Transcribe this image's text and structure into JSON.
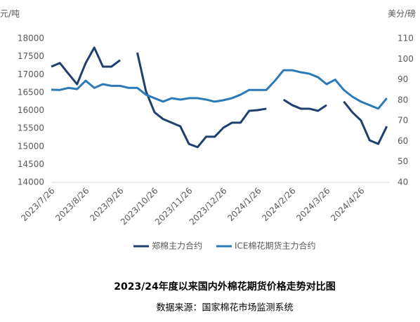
{
  "chart_data": {
    "type": "line",
    "title": "2023/24年度以来国内外棉花期货价格走势对比图",
    "subtitle": "数据来源：国家棉花市场监测系统",
    "y_label": "元/吨",
    "y2_label": "美分/磅",
    "categories": [
      "2023/7/26",
      null,
      null,
      null,
      "2023/8/26",
      null,
      null,
      null,
      "2023/9/26",
      null,
      null,
      null,
      "2023/10/26",
      null,
      null,
      null,
      "2023/11/26",
      null,
      null,
      null,
      "2023/12/26",
      null,
      null,
      null,
      "2024/1/26",
      null,
      null,
      null,
      "2024/2/26",
      null,
      null,
      null,
      "2024/3/26",
      null,
      null,
      null,
      "2024/4/26",
      null,
      null,
      null
    ],
    "series": [
      {
        "name": "郑棉主力合约",
        "color": "#1f3f6e",
        "values": [
          17220,
          17320,
          17020,
          16730,
          17320,
          17750,
          17220,
          17220,
          17400,
          null,
          17610,
          16540,
          15950,
          15760,
          15660,
          15560,
          15070,
          14980,
          15270,
          15270,
          15520,
          15660,
          15660,
          15990,
          16010,
          16050,
          null,
          16300,
          16150,
          16050,
          16050,
          15990,
          16150,
          null,
          16250,
          15950,
          15720,
          15170,
          15070,
          15560
        ]
      },
      {
        "name": "ICE棉花期货主力合约",
        "color": "#2a7ab8",
        "axis": "y2",
        "values": [
          85.1,
          85,
          86,
          85.4,
          89.5,
          86,
          87.8,
          87,
          87,
          86,
          86,
          82.7,
          81,
          79.3,
          81,
          80.3,
          81,
          81,
          80.3,
          79.3,
          80,
          81,
          82.7,
          85,
          85,
          85,
          89.5,
          94.6,
          94.6,
          93.6,
          92.9,
          91.2,
          87.8,
          90,
          85,
          81.7,
          79.3,
          77.6,
          75.9,
          81
        ]
      }
    ],
    "ylim": [
      14000,
      18000
    ],
    "yticks": [
      14000,
      14500,
      15000,
      15500,
      16000,
      16500,
      17000,
      17500,
      18000
    ],
    "y2lim": [
      40,
      110
    ],
    "y2ticks": [
      40,
      50,
      60,
      70,
      80,
      90,
      100,
      110
    ],
    "grid": false,
    "legend": "bottom"
  }
}
